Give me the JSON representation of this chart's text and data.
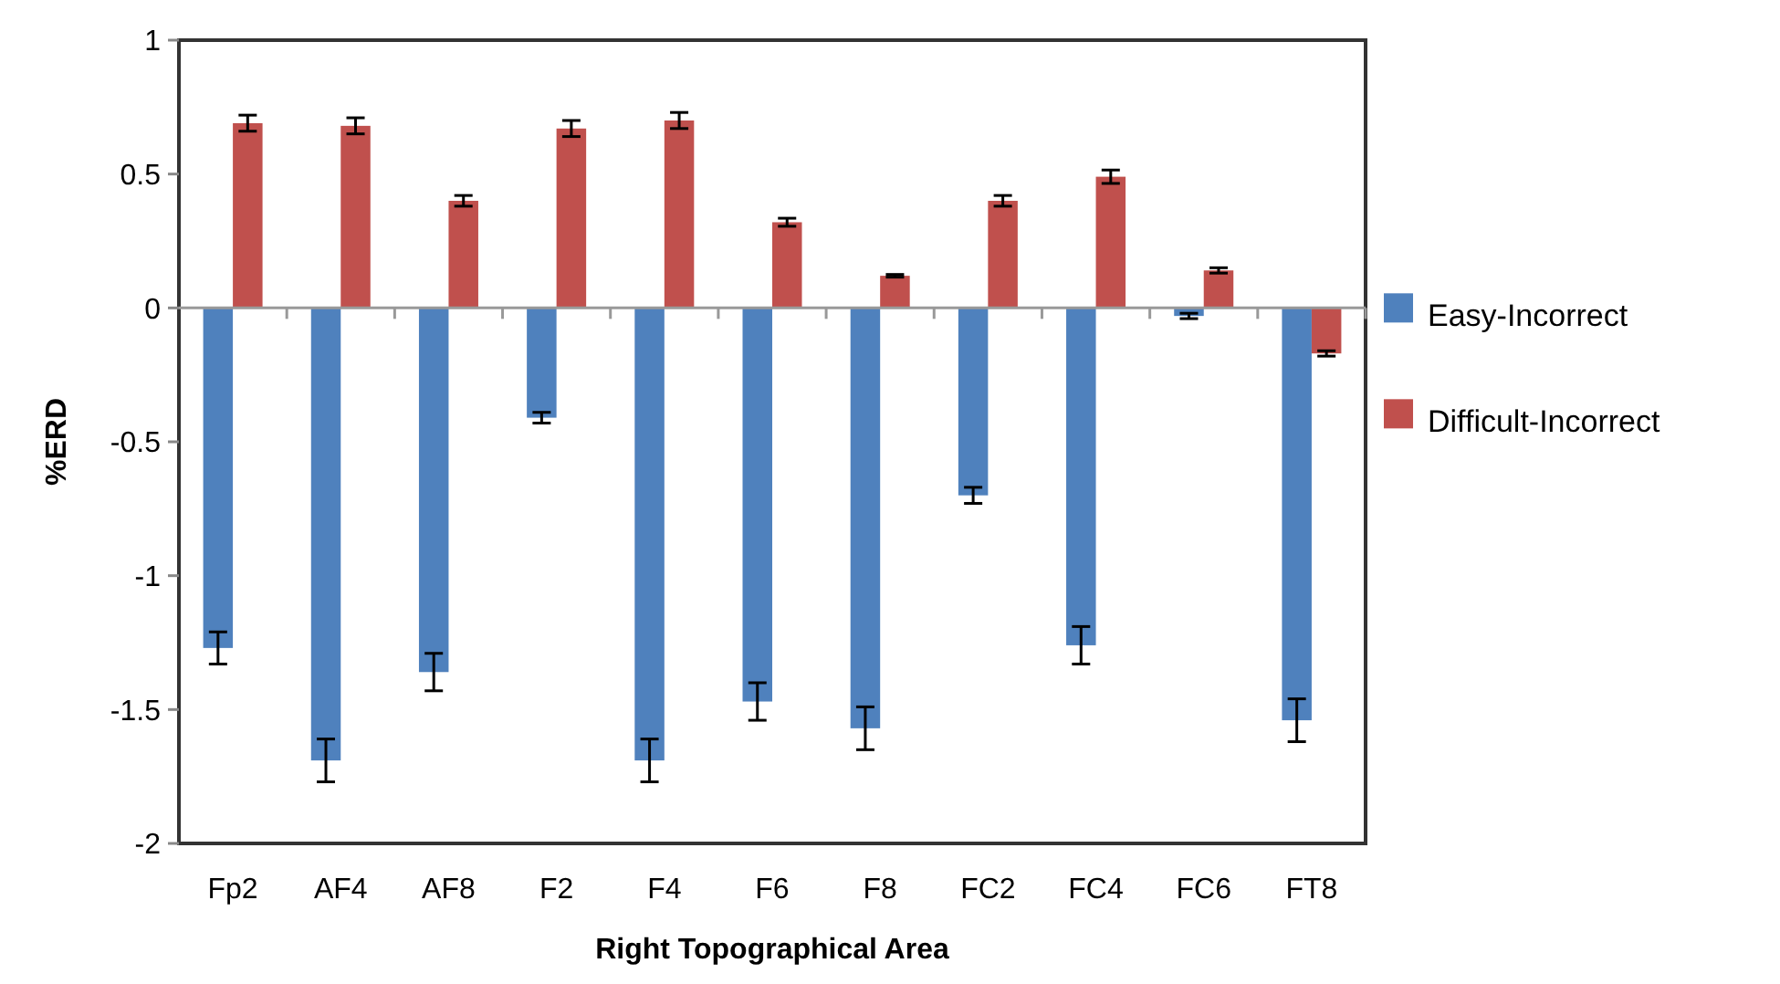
{
  "chart_data": {
    "type": "bar",
    "xlabel": "Right Topographical Area",
    "ylabel": "%ERD",
    "categories": [
      "Fp2",
      "AF4",
      "AF8",
      "F2",
      "F4",
      "F6",
      "F8",
      "FC2",
      "FC4",
      "FC6",
      "FT8"
    ],
    "series": [
      {
        "name": "Easy-Incorrect",
        "color": "#4f81bd",
        "values": [
          -1.27,
          -1.69,
          -1.36,
          -0.41,
          -1.69,
          -1.47,
          -1.57,
          -0.7,
          -1.26,
          -0.03,
          -1.54
        ],
        "errors": [
          0.06,
          0.08,
          0.07,
          0.02,
          0.08,
          0.07,
          0.08,
          0.03,
          0.07,
          0.01,
          0.08
        ]
      },
      {
        "name": "Difficult-Incorrect",
        "color": "#c0504d",
        "values": [
          0.69,
          0.68,
          0.4,
          0.67,
          0.7,
          0.32,
          0.12,
          0.4,
          0.49,
          0.14,
          -0.17
        ],
        "errors": [
          0.03,
          0.03,
          0.02,
          0.03,
          0.03,
          0.015,
          0.005,
          0.02,
          0.025,
          0.01,
          0.01
        ]
      }
    ],
    "ylim": [
      -2,
      1
    ],
    "yticks": [
      -2,
      -1.5,
      -1,
      -0.5,
      0,
      0.5,
      1
    ],
    "legend": "right"
  }
}
